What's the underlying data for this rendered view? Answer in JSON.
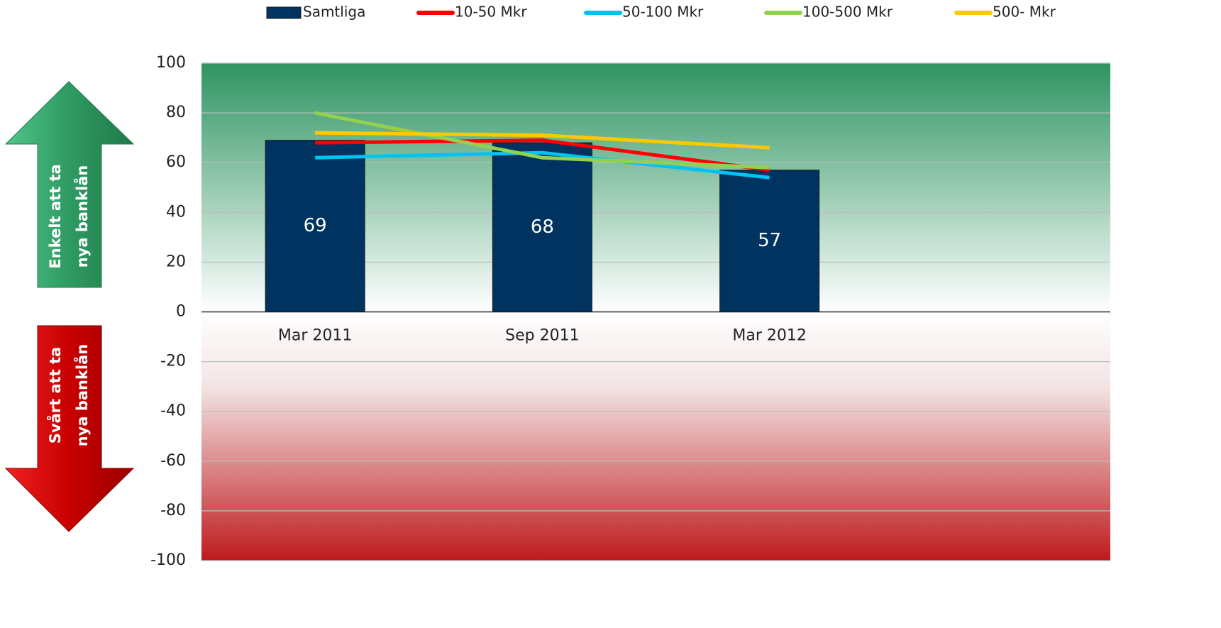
{
  "chart_data": {
    "type": "bar",
    "categories": [
      "Mar 2011",
      "Sep 2011",
      "Mar 2012",
      null
    ],
    "series": [
      {
        "name": "Samtliga",
        "type": "bar",
        "color": "#00335f",
        "values": [
          69,
          68,
          57,
          null
        ]
      },
      {
        "name": "10-50 Mkr",
        "type": "line",
        "color": "#ff0000",
        "values": [
          68,
          69,
          57,
          null
        ]
      },
      {
        "name": "50-100 Mkr",
        "type": "line",
        "color": "#00c3f2",
        "values": [
          62,
          64,
          54,
          null
        ]
      },
      {
        "name": "100-500 Mkr",
        "type": "line",
        "color": "#92d050",
        "values": [
          80,
          62,
          58,
          null
        ]
      },
      {
        "name": "500- Mkr",
        "type": "line",
        "color": "#ffc800",
        "values": [
          72,
          71,
          66,
          null
        ]
      }
    ],
    "ylim": [
      -100,
      100
    ],
    "yticks": [
      -100,
      -80,
      -60,
      -40,
      -20,
      0,
      20,
      40,
      60,
      80,
      100
    ],
    "grid": true,
    "legend": "top",
    "annotations": [
      [
        "Enkelt att ta",
        "nya banklån"
      ],
      [
        "Svårt att ta",
        "nya banklån"
      ]
    ]
  }
}
